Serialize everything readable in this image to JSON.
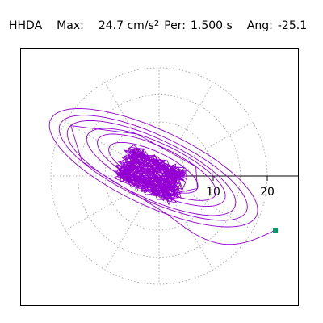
{
  "header": {
    "station": "HHDA",
    "max_label": "Max:",
    "max_value": "24.7 cm/s",
    "max_exp": "2",
    "per_label": "Per:",
    "per_value": "1.500 s",
    "ang_label": "Ang:",
    "ang_value": "-25.1"
  },
  "colors": {
    "trace": "#9400d3",
    "end_marker": "#009966",
    "grid": "#999999",
    "axis": "#000000",
    "frame": "#000000"
  },
  "chart_data": {
    "type": "polar-orbit",
    "title": "HHDA  Max: 24.7 cm/s2  Per: 1.500 s  Ang: -25.1",
    "units": "cm/s2",
    "max": 24.7,
    "period_s": 1.5,
    "angle_deg": -25.1,
    "radial_ticks": [
      10,
      20
    ],
    "radial_tick_labels": [
      "10",
      "20"
    ],
    "rings": [
      5,
      10,
      15,
      20
    ],
    "spokes_deg": [
      0,
      30,
      60,
      90,
      120,
      150,
      180,
      210,
      240,
      270,
      300,
      330
    ],
    "grid": true,
    "end_point": {
      "x": 21.5,
      "y": -10
    }
  }
}
